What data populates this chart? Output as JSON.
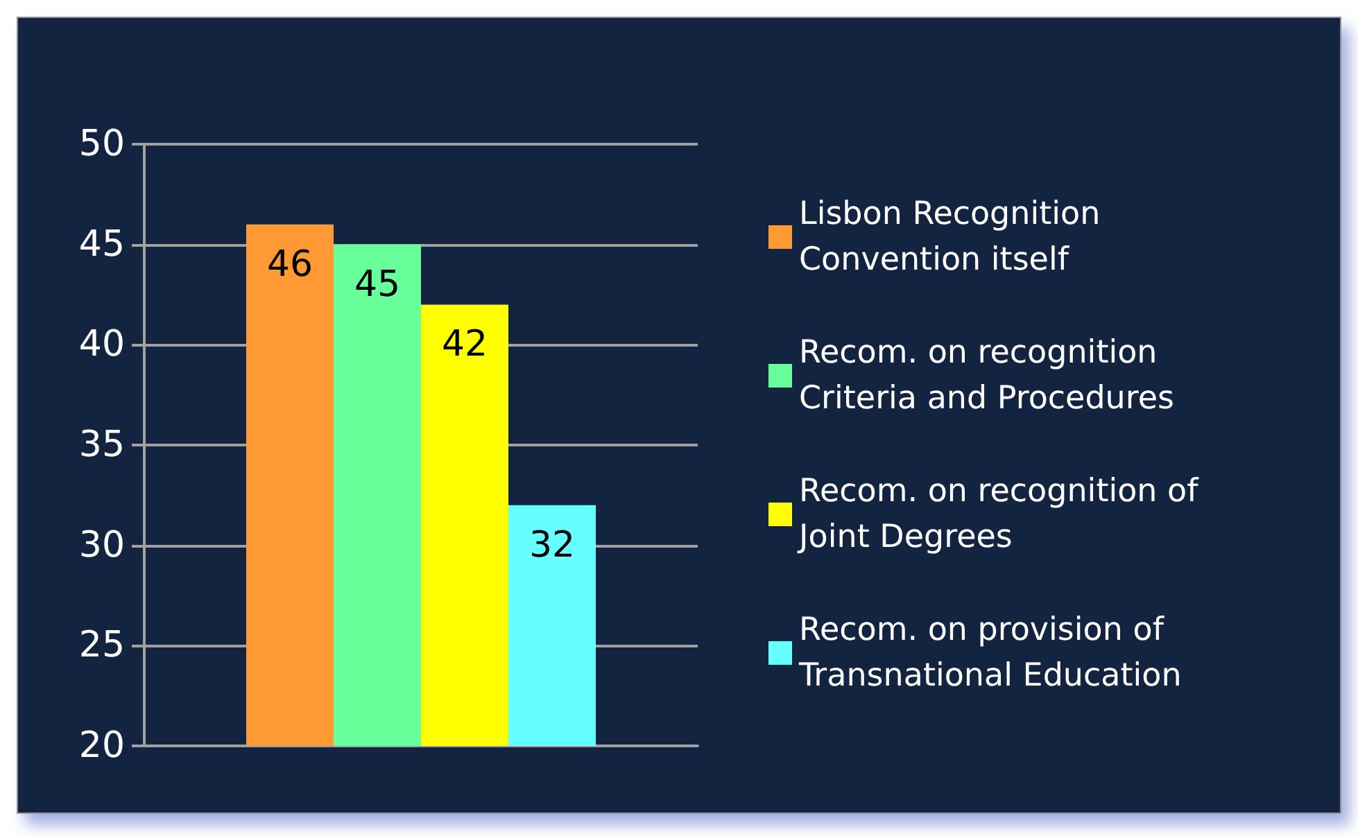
{
  "chart_data": {
    "type": "bar",
    "categories": [
      null
    ],
    "series": [
      {
        "name": "Lisbon Recognition Convention itself",
        "color": "#ff9933",
        "values": [
          46
        ]
      },
      {
        "name": "Recom. on recognition Criteria and Procedures",
        "color": "#66ff99",
        "values": [
          45
        ]
      },
      {
        "name": "Recom. on recognition of Joint Degrees",
        "color": "#ffff00",
        "values": [
          42
        ]
      },
      {
        "name": "Recom. on provision of Transnational Education",
        "color": "#66ffff",
        "values": [
          32
        ]
      }
    ],
    "ylim": [
      20,
      50
    ],
    "yticks": [
      20,
      25,
      30,
      35,
      40,
      45,
      50
    ],
    "grid": "y",
    "legend": "right",
    "data_labels": true
  }
}
